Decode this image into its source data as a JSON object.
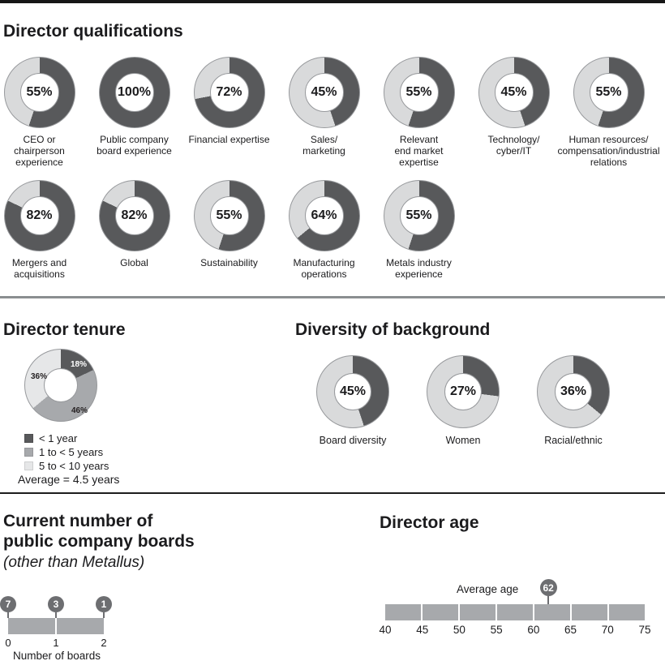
{
  "colors": {
    "filled_dark": "#58595b",
    "unfilled_light": "#d9dadb",
    "medium_gray": "#a7a9ac",
    "lightest_gray": "#e6e7e8",
    "marker_gray": "#6d6e71",
    "bar_gray": "#a7a9ac",
    "text": "#1b1b1d"
  },
  "chart_data": [
    {
      "type": "pie",
      "subtype": "donut-grid",
      "title": "Director qualifications",
      "unit": "%",
      "filled_color": "#58595b",
      "rest_color": "#d9dadb",
      "rows": [
        [
          {
            "label": "CEO or\nchairperson\nexperience",
            "value": 55
          },
          {
            "label": "Public company\nboard experience",
            "value": 100
          },
          {
            "label": "Financial expertise",
            "value": 72
          },
          {
            "label": "Sales/\nmarketing",
            "value": 45
          },
          {
            "label": "Relevant\nend market\nexpertise",
            "value": 55
          },
          {
            "label": "Technology/\ncyber/IT",
            "value": 45
          },
          {
            "label": "Human resources/\ncompensation/industrial\nrelations",
            "value": 55
          }
        ],
        [
          {
            "label": "Mergers and\nacquisitions",
            "value": 82
          },
          {
            "label": "Global",
            "value": 82
          },
          {
            "label": "Sustainability",
            "value": 55
          },
          {
            "label": "Manufacturing\noperations",
            "value": 64
          },
          {
            "label": "Metals industry\nexperience",
            "value": 55
          }
        ]
      ]
    },
    {
      "type": "pie",
      "subtype": "donut",
      "title": "Director tenure",
      "unit": "%",
      "segments": [
        {
          "label": "< 1 year",
          "value": 18,
          "color": "#58595b",
          "label_color": "#ffffff"
        },
        {
          "label": "1 to < 5 years",
          "value": 46,
          "color": "#a7a9ac",
          "label_color": "#231f20"
        },
        {
          "label": "5 to < 10 years",
          "value": 36,
          "color": "#e6e7e8",
          "label_color": "#231f20"
        }
      ],
      "legend_position": "below-left",
      "average_note": "Average = 4.5 years"
    },
    {
      "type": "pie",
      "subtype": "donut-grid",
      "title": "Diversity of background",
      "unit": "%",
      "filled_color": "#58595b",
      "rest_color": "#d9dadb",
      "items": [
        {
          "label": "Board diversity",
          "value": 45
        },
        {
          "label": "Women",
          "value": 27
        },
        {
          "label": "Racial/ethnic",
          "value": 36
        }
      ]
    },
    {
      "type": "scale",
      "title": "Current number of\npublic company boards",
      "subtitle": "(other than Metallus)",
      "xlabel": "Number of boards",
      "xlim": [
        0,
        2
      ],
      "ticks": [
        0,
        1,
        2
      ],
      "markers": [
        {
          "x": 0,
          "value": 7
        },
        {
          "x": 1,
          "value": 3
        },
        {
          "x": 2,
          "value": 1
        }
      ]
    },
    {
      "type": "scale",
      "title": "Director age",
      "xlim": [
        40,
        75
      ],
      "ticks": [
        40,
        45,
        50,
        55,
        60,
        65,
        70,
        75
      ],
      "marker": {
        "label": "Average age",
        "value": 62
      }
    }
  ]
}
